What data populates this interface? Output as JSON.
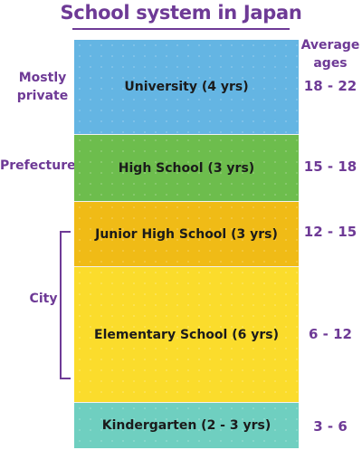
{
  "title": "School system in Japan",
  "ages_header": {
    "line1": "Average",
    "line2": "ages"
  },
  "levels": [
    {
      "name": "University (4 yrs)",
      "ages": "18 - 22",
      "color": "#64b5e3"
    },
    {
      "name": "High School (3 yrs)",
      "ages": "15 - 18",
      "color": "#6dbd4d"
    },
    {
      "name": "Junior High School (3 yrs)",
      "ages": "12 - 15",
      "color": "#f0bb16"
    },
    {
      "name": "Elementary School (6 yrs)",
      "ages": "6 - 12",
      "color": "#fbdc2c"
    },
    {
      "name": "Kindergarten (2 - 3 yrs)",
      "ages": "3 - 6",
      "color": "#6fcfc0"
    }
  ],
  "authorities": {
    "private_line1": "Mostly",
    "private_line2": "private",
    "prefecture": "Prefecture",
    "city": "City"
  },
  "colors": {
    "accent": "#6e3a96"
  }
}
